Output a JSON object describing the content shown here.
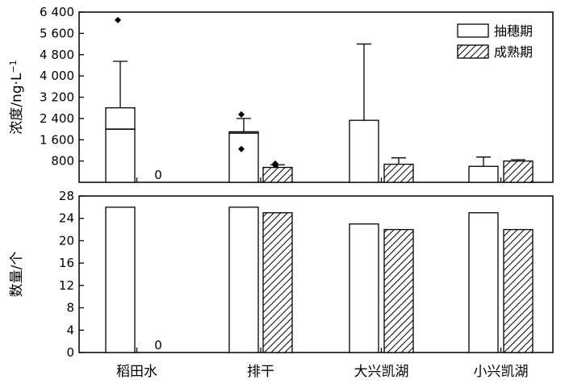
{
  "chart_data": [
    {
      "type": "bar",
      "panel": "top",
      "ylabel": "浓度/ng·L",
      "ylabel_sup": "−1",
      "ylim": [
        0,
        6400
      ],
      "yticks": [
        800,
        1600,
        2400,
        3200,
        4000,
        4800,
        5600,
        6400
      ],
      "ytick_labels": [
        "800",
        "1 600",
        "2 400",
        "3 200",
        "4 000",
        "4 800",
        "5 600",
        "6 400"
      ],
      "categories": [
        "稻田水",
        "排干",
        "大兴凯湖",
        "小兴凯湖"
      ],
      "legend": {
        "position": "top-right",
        "entries": [
          "抽穗期",
          "成熟期"
        ]
      },
      "series": [
        {
          "name": "抽穗期",
          "pattern": "white",
          "values": [
            2000,
            1850,
            2330,
            600
          ],
          "mean": [
            2800,
            1900,
            null,
            null
          ],
          "error_upper": [
            4550,
            2400,
            5200,
            950
          ],
          "outliers": [
            [
              6100
            ],
            [
              2550,
              1250
            ],
            [],
            []
          ]
        },
        {
          "name": "成熟期",
          "pattern": "hatched",
          "values": [
            0,
            560,
            680,
            800
          ],
          "mean": [
            null,
            null,
            null,
            null
          ],
          "error_upper": [
            null,
            660,
            920,
            850
          ],
          "outliers": [
            [],
            [
              700,
              640
            ],
            [],
            []
          ]
        }
      ],
      "zero_labels": [
        "0"
      ]
    },
    {
      "type": "bar",
      "panel": "bottom",
      "ylabel": "数量/个",
      "ylim": [
        0,
        28
      ],
      "yticks": [
        0,
        4,
        8,
        12,
        16,
        20,
        24,
        28
      ],
      "ytick_labels": [
        "0",
        "4",
        "8",
        "12",
        "16",
        "20",
        "24",
        "28"
      ],
      "categories": [
        "稻田水",
        "排干",
        "大兴凯湖",
        "小兴凯湖"
      ],
      "series": [
        {
          "name": "抽穗期",
          "pattern": "white",
          "values": [
            26,
            26,
            23,
            25
          ]
        },
        {
          "name": "成熟期",
          "pattern": "hatched",
          "values": [
            0,
            25,
            22,
            22
          ]
        }
      ],
      "zero_labels": [
        "0"
      ]
    }
  ]
}
